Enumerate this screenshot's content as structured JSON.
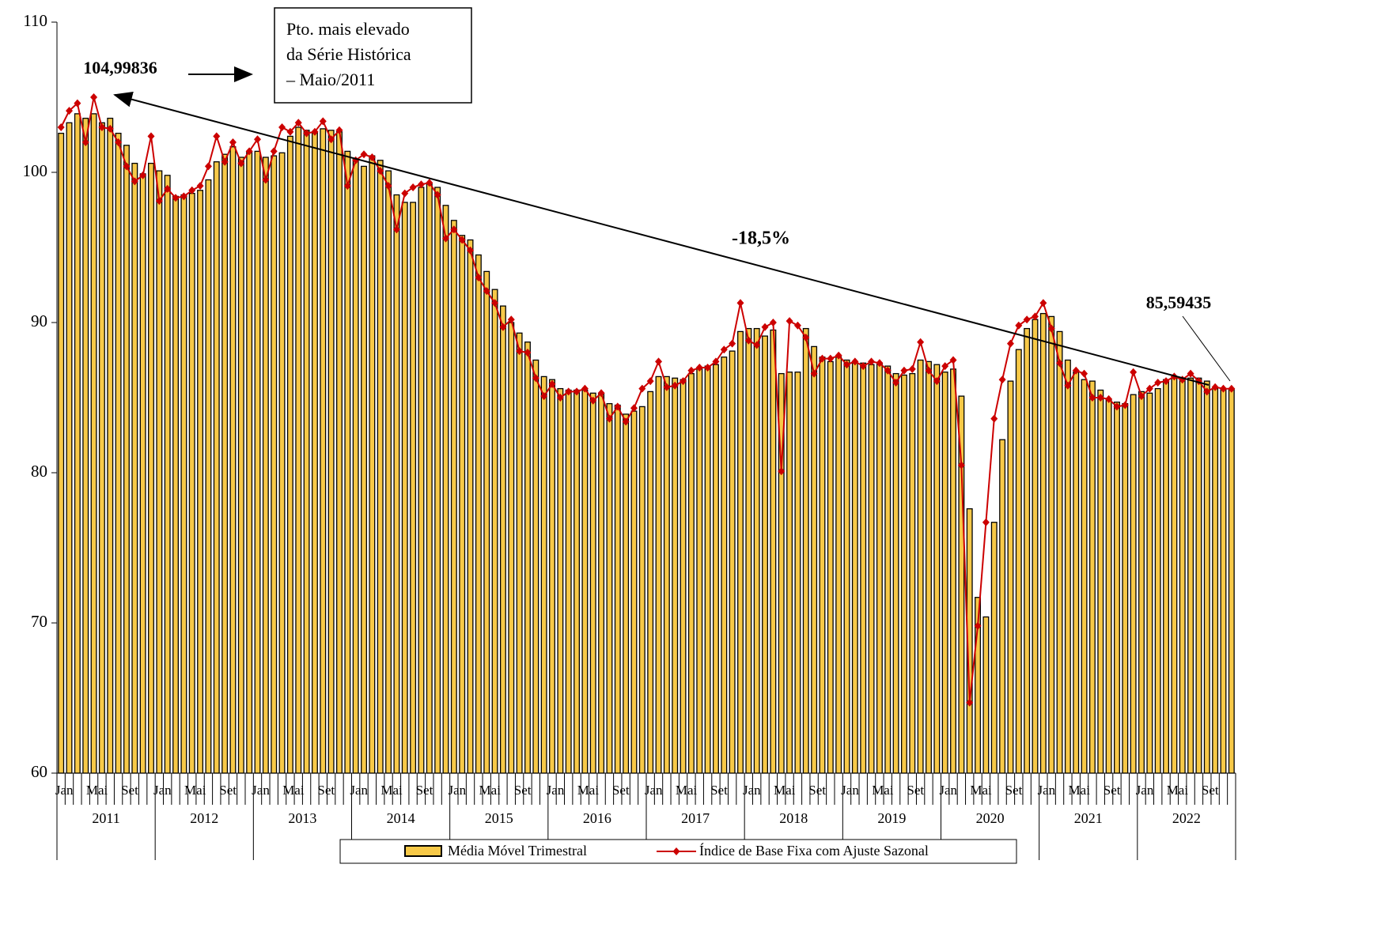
{
  "chart_data": {
    "type": "combo",
    "categories": [
      "Jan",
      null,
      null,
      null,
      "Mai",
      null,
      null,
      null,
      "Set",
      null,
      null,
      null,
      "Jan",
      null,
      null,
      null,
      "Mai",
      null,
      null,
      null,
      "Set",
      null,
      null,
      null,
      "Jan",
      null,
      null,
      null,
      "Mai",
      null,
      null,
      null,
      "Set",
      null,
      null,
      null,
      "Jan",
      null,
      null,
      null,
      "Mai",
      null,
      null,
      null,
      "Set",
      null,
      null,
      null,
      "Jan",
      null,
      null,
      null,
      "Mai",
      null,
      null,
      null,
      "Set",
      null,
      null,
      null,
      "Jan",
      null,
      null,
      null,
      "Mai",
      null,
      null,
      null,
      "Set",
      null,
      null,
      null,
      "Jan",
      null,
      null,
      null,
      "Mai",
      null,
      null,
      null,
      "Set",
      null,
      null,
      null,
      "Jan",
      null,
      null,
      null,
      "Mai",
      null,
      null,
      null,
      "Set",
      null,
      null,
      null,
      "Jan",
      null,
      null,
      null,
      "Mai",
      null,
      null,
      null,
      "Set",
      null,
      null,
      null,
      "Jan",
      null,
      null,
      null,
      "Mai",
      null,
      null,
      null,
      "Set",
      null,
      null,
      null,
      "Jan",
      null,
      null,
      null,
      "Mai",
      null,
      null,
      null,
      "Set",
      null,
      null,
      null,
      "Jan",
      null,
      null,
      null,
      "Mai",
      null,
      null,
      null,
      "Set",
      null,
      null,
      null
    ],
    "years": [
      "2011",
      "2012",
      "2013",
      "2014",
      "2015",
      "2016",
      "2017",
      "2018",
      "2019",
      "2020",
      "2021",
      "2022"
    ],
    "ylim": [
      60,
      110
    ],
    "yticks": [
      60,
      70,
      80,
      90,
      100,
      110
    ],
    "series": [
      {
        "name": "Média Móvel Trimestral",
        "type": "bar",
        "color": "#f7c948",
        "values": [
          102.6,
          103.3,
          103.9,
          103.6,
          103.9,
          103.3,
          103.6,
          102.6,
          101.8,
          100.6,
          99.9,
          100.6,
          100.1,
          99.8,
          98.4,
          98.5,
          98.6,
          98.8,
          99.5,
          100.7,
          101.2,
          101.7,
          101.0,
          101.4,
          101.4,
          101.0,
          101.1,
          101.3,
          102.4,
          103.0,
          102.8,
          102.7,
          102.9,
          102.8,
          102.7,
          101.4,
          100.9,
          100.4,
          101.1,
          100.8,
          100.1,
          98.5,
          98.0,
          98.0,
          99.0,
          99.3,
          99.0,
          97.8,
          96.8,
          95.8,
          95.5,
          94.5,
          93.4,
          92.2,
          91.1,
          90.0,
          89.3,
          88.7,
          87.5,
          86.4,
          86.2,
          85.6,
          85.5,
          85.5,
          85.5,
          85.3,
          85.3,
          84.6,
          84.5,
          83.9,
          84.1,
          84.4,
          85.4,
          86.4,
          86.4,
          86.3,
          86.2,
          86.6,
          87.0,
          87.1,
          87.2,
          87.7,
          88.1,
          89.4,
          89.6,
          89.6,
          89.1,
          89.5,
          86.6,
          86.7,
          86.7,
          89.6,
          88.4,
          87.7,
          87.4,
          87.7,
          87.5,
          87.3,
          87.3,
          87.2,
          87.3,
          87.1,
          86.6,
          86.5,
          86.6,
          87.5,
          87.4,
          87.2,
          86.7,
          86.9,
          85.1,
          77.6,
          71.7,
          70.4,
          76.7,
          82.2,
          86.1,
          88.2,
          89.6,
          90.2,
          90.6,
          90.4,
          89.4,
          87.5,
          86.7,
          86.2,
          86.1,
          85.5,
          84.9,
          84.7,
          84.6,
          85.2,
          85.4,
          85.3,
          85.6,
          86.2,
          86.3,
          86.3,
          86.3,
          86.3,
          86.1,
          85.6,
          85.6,
          85.6
        ]
      },
      {
        "name": "Índice de Base Fixa com Ajuste Sazonal",
        "type": "line",
        "color": "#cc0000",
        "values": [
          103.0,
          104.1,
          104.6,
          102.0,
          104.99836,
          103.0,
          102.9,
          102.0,
          100.4,
          99.4,
          99.8,
          102.4,
          98.1,
          98.9,
          98.3,
          98.4,
          98.8,
          99.1,
          100.4,
          102.4,
          100.7,
          102.0,
          100.6,
          101.4,
          102.2,
          99.5,
          101.4,
          103.0,
          102.7,
          103.3,
          102.6,
          102.7,
          103.4,
          102.2,
          102.8,
          99.1,
          100.8,
          101.2,
          101.0,
          100.1,
          99.1,
          96.2,
          98.6,
          99.0,
          99.2,
          99.3,
          98.5,
          95.6,
          96.2,
          95.5,
          94.8,
          93.0,
          92.1,
          91.3,
          89.7,
          90.2,
          88.1,
          88.0,
          86.3,
          85.1,
          85.9,
          85.0,
          85.4,
          85.4,
          85.6,
          84.8,
          85.3,
          83.6,
          84.4,
          83.4,
          84.3,
          85.6,
          86.1,
          87.4,
          85.7,
          85.8,
          86.1,
          86.8,
          87.0,
          87.0,
          87.4,
          88.2,
          88.6,
          91.3,
          88.8,
          88.5,
          89.7,
          90.0,
          80.1,
          90.1,
          89.8,
          89.0,
          86.6,
          87.6,
          87.6,
          87.8,
          87.2,
          87.4,
          87.1,
          87.4,
          87.3,
          86.8,
          86.0,
          86.8,
          86.9,
          88.7,
          86.8,
          86.1,
          87.1,
          87.5,
          80.5,
          64.7,
          69.8,
          76.7,
          83.6,
          86.2,
          88.6,
          89.8,
          90.2,
          90.4,
          91.3,
          89.6,
          87.3,
          85.8,
          86.8,
          86.6,
          85.0,
          85.0,
          84.9,
          84.4,
          84.5,
          86.7,
          85.1,
          85.6,
          86.0,
          86.1,
          86.4,
          86.2,
          86.6,
          86.1,
          85.4,
          85.7,
          85.6,
          85.59435
        ],
        "value_labels": [
          null,
          null,
          null,
          null,
          "104,99836",
          null,
          null,
          null,
          null,
          null,
          null,
          null,
          null,
          null,
          null,
          null,
          null,
          null,
          null,
          null,
          null,
          null,
          null,
          null,
          null,
          null,
          null,
          null,
          null,
          null,
          null,
          null,
          null,
          null,
          null,
          null,
          null,
          null,
          null,
          null,
          null,
          null,
          null,
          null,
          null,
          null,
          null,
          null,
          null,
          null,
          null,
          null,
          null,
          null,
          null,
          null,
          null,
          null,
          null,
          null,
          null,
          null,
          null,
          null,
          null,
          null,
          null,
          null,
          null,
          null,
          null,
          null,
          null,
          null,
          null,
          null,
          null,
          null,
          null,
          null,
          null,
          null,
          null,
          null,
          null,
          null,
          null,
          null,
          null,
          null,
          null,
          null,
          null,
          null,
          null,
          null,
          null,
          null,
          null,
          null,
          null,
          null,
          null,
          null,
          null,
          null,
          null,
          null,
          null,
          null,
          null,
          null,
          null,
          null,
          null,
          null,
          null,
          null,
          null,
          null,
          null,
          null,
          null,
          null,
          null,
          null,
          null,
          null,
          null,
          null,
          null,
          null,
          null,
          null,
          null,
          null,
          null,
          null,
          null,
          null,
          null,
          null,
          null,
          "85,59435"
        ]
      }
    ],
    "note_lines": [
      "Pto. mais elevado",
      "da Série Histórica",
      "– Maio/2011"
    ],
    "change_label": "-18,5%"
  }
}
